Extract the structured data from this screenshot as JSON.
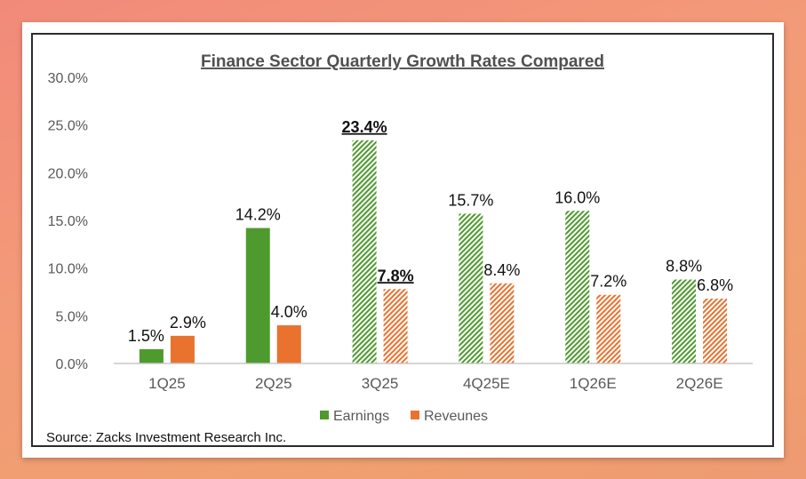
{
  "chart_data": {
    "type": "bar",
    "title": "Finance Sector Quarterly Growth Rates Compared",
    "categories": [
      "1Q25",
      "2Q25",
      "3Q25",
      "4Q25E",
      "1Q26E",
      "2Q26E"
    ],
    "series": [
      {
        "name": "Earnings",
        "values": [
          1.5,
          14.2,
          23.4,
          15.7,
          16.0,
          8.8
        ],
        "labels": [
          "1.5%",
          "14.2%",
          "23.4%",
          "15.7%",
          "16.0%",
          "8.8%"
        ],
        "patterned": [
          false,
          false,
          true,
          true,
          true,
          true
        ],
        "emphasized": [
          false,
          false,
          true,
          false,
          false,
          false
        ]
      },
      {
        "name": "Reveunes",
        "values": [
          2.9,
          4.0,
          7.8,
          8.4,
          7.2,
          6.8
        ],
        "labels": [
          "2.9%",
          "4.0%",
          "7.8%",
          "8.4%",
          "7.2%",
          "6.8%"
        ],
        "patterned": [
          false,
          false,
          true,
          true,
          true,
          true
        ],
        "emphasized": [
          false,
          false,
          true,
          false,
          false,
          false
        ]
      }
    ],
    "ylim": [
      0,
      30
    ],
    "yticks": [
      "0.0%",
      "5.0%",
      "10.0%",
      "15.0%",
      "20.0%",
      "25.0%",
      "30.0%"
    ],
    "ytick_values": [
      0,
      5,
      10,
      15,
      20,
      25,
      30
    ],
    "xlabel": "",
    "ylabel": "",
    "legend_position": "bottom",
    "grid": false
  },
  "source": "Source: Zacks Investment Research Inc.",
  "colors": {
    "earnings": "#4f9a2f",
    "revenues": "#e9722f",
    "axis": "#c8c8c8"
  }
}
